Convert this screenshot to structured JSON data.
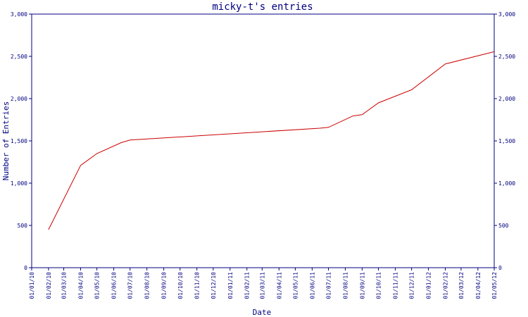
{
  "chart_data": {
    "type": "line",
    "title": "micky-t's entries",
    "xlabel": "Date",
    "ylabel": "Number of Entries",
    "ylim": [
      0,
      3000
    ],
    "y_ticks": [
      0,
      500,
      1000,
      1500,
      2000,
      2500,
      3000
    ],
    "y_tick_labels": [
      "0",
      "500",
      "1,000",
      "1,500",
      "2,000",
      "2,500",
      "3,000"
    ],
    "x_ticks": [
      "01/01/10",
      "01/02/10",
      "01/03/10",
      "01/04/10",
      "01/05/10",
      "01/06/10",
      "01/07/10",
      "01/08/10",
      "01/09/10",
      "01/10/10",
      "01/11/10",
      "01/12/10",
      "01/01/11",
      "01/02/11",
      "01/03/11",
      "01/04/11",
      "01/05/11",
      "01/06/11",
      "01/07/11",
      "01/08/11",
      "01/09/11",
      "01/10/11",
      "01/11/11",
      "01/12/11",
      "01/01/12",
      "01/02/12",
      "01/03/12",
      "01/04/12",
      "01/05/12"
    ],
    "grid": false,
    "line_color": "#cc0000",
    "axis_color": "#000080",
    "series": [
      {
        "x": [
          "2010-02-01",
          "2010-04-01",
          "2010-05-01",
          "2010-06-15",
          "2010-07-01",
          "2011-06-15",
          "2011-07-01",
          "2011-08-15",
          "2011-09-01",
          "2011-10-01",
          "2011-12-01",
          "2012-02-01",
          "2012-05-01"
        ],
        "values": [
          450,
          1210,
          1350,
          1480,
          1510,
          1650,
          1660,
          1795,
          1810,
          1950,
          2105,
          2410,
          2555
        ]
      }
    ]
  }
}
